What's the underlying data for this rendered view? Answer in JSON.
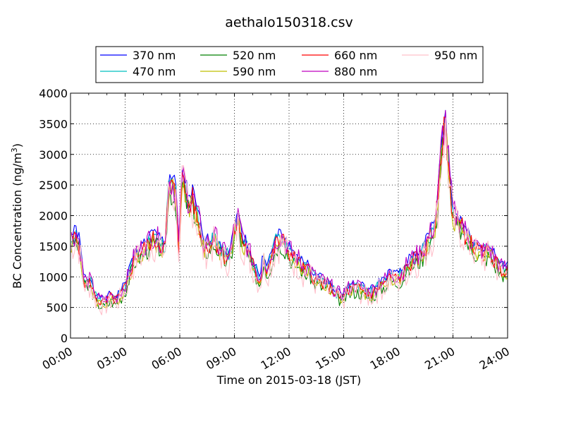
{
  "chart_data": {
    "type": "line",
    "title": "aethalo150318.csv",
    "xlabel": "Time on 2015-03-18 (JST)",
    "ylabel_text": "BC Concentration (ng/m",
    "ylabel_sup": "3",
    "ylabel_close": ")",
    "x_unit": "hours",
    "xlim": [
      0,
      24
    ],
    "ylim": [
      0,
      4000
    ],
    "xticks": [
      0,
      3,
      6,
      9,
      12,
      15,
      18,
      21,
      24
    ],
    "xtick_labels": [
      "00:00",
      "03:00",
      "06:00",
      "09:00",
      "12:00",
      "15:00",
      "18:00",
      "21:00",
      "24:00"
    ],
    "yticks": [
      0,
      500,
      1000,
      1500,
      2000,
      2500,
      3000,
      3500,
      4000
    ],
    "ytick_labels": [
      "0",
      "500",
      "1000",
      "1500",
      "2000",
      "2500",
      "3000",
      "3500",
      "4000"
    ],
    "grid": true,
    "legend_position": "top",
    "series": [
      {
        "name": "370 nm",
        "color": "#0000ff",
        "offset": 60,
        "scale": 1.04,
        "jitter": 0.5,
        "seed": 1
      },
      {
        "name": "470 nm",
        "color": "#00bfbf",
        "offset": 30,
        "scale": 1.01,
        "jitter": 0.7,
        "seed": 2
      },
      {
        "name": "520 nm",
        "color": "#008000",
        "offset": -40,
        "scale": 0.98,
        "jitter": 0.8,
        "seed": 3
      },
      {
        "name": "590 nm",
        "color": "#bfbf00",
        "offset": -10,
        "scale": 0.99,
        "jitter": 0.8,
        "seed": 4
      },
      {
        "name": "660 nm",
        "color": "#ff0000",
        "offset": 10,
        "scale": 1.0,
        "jitter": 0.8,
        "seed": 5
      },
      {
        "name": "880 nm",
        "color": "#bf00bf",
        "offset": 40,
        "scale": 1.02,
        "jitter": 1.0,
        "seed": 6
      },
      {
        "name": "950 nm",
        "color": "#ffc0cb",
        "offset": -30,
        "scale": 0.98,
        "jitter": 1.5,
        "seed": 7
      }
    ],
    "base_profile": {
      "x": [
        0,
        0.3,
        0.5,
        0.7,
        0.9,
        1.1,
        1.3,
        1.5,
        1.8,
        2.0,
        2.2,
        2.5,
        2.8,
        3.0,
        3.3,
        3.6,
        3.9,
        4.2,
        4.5,
        4.8,
        5.0,
        5.2,
        5.4,
        5.6,
        5.8,
        5.95,
        6.1,
        6.3,
        6.5,
        6.7,
        6.9,
        7.1,
        7.3,
        7.6,
        7.9,
        8.2,
        8.5,
        8.8,
        9.0,
        9.2,
        9.4,
        9.6,
        9.8,
        10.0,
        10.2,
        10.4,
        10.6,
        10.8,
        11.0,
        11.3,
        11.6,
        11.9,
        12.2,
        12.5,
        12.8,
        13.1,
        13.4,
        13.7,
        14.0,
        14.3,
        14.6,
        14.9,
        15.2,
        15.5,
        15.8,
        16.1,
        16.4,
        16.7,
        17.0,
        17.3,
        17.6,
        17.9,
        18.2,
        18.5,
        18.8,
        19.1,
        19.4,
        19.7,
        20.0,
        20.2,
        20.4,
        20.6,
        20.8,
        21.0,
        21.2,
        21.5,
        21.8,
        22.1,
        22.4,
        22.7,
        23.0,
        23.3,
        23.6,
        24.0
      ],
      "y": [
        1550,
        1650,
        1500,
        950,
        850,
        900,
        700,
        600,
        560,
        580,
        650,
        600,
        720,
        800,
        1100,
        1350,
        1400,
        1500,
        1600,
        1550,
        1500,
        1450,
        2500,
        2450,
        2300,
        1400,
        2600,
        2400,
        2150,
        2250,
        2000,
        1800,
        1450,
        1500,
        1600,
        1450,
        1300,
        1350,
        1750,
        1900,
        1600,
        1500,
        1350,
        1200,
        1050,
        900,
        1300,
        1100,
        1250,
        1550,
        1600,
        1450,
        1300,
        1250,
        1100,
        1100,
        950,
        900,
        850,
        800,
        700,
        650,
        750,
        800,
        800,
        750,
        700,
        750,
        850,
        900,
        1000,
        950,
        1000,
        1150,
        1250,
        1300,
        1400,
        1600,
        1800,
        2300,
        3200,
        3450,
        2600,
        2000,
        1900,
        1800,
        1600,
        1500,
        1400,
        1350,
        1400,
        1250,
        1100,
        1100
      ]
    }
  }
}
